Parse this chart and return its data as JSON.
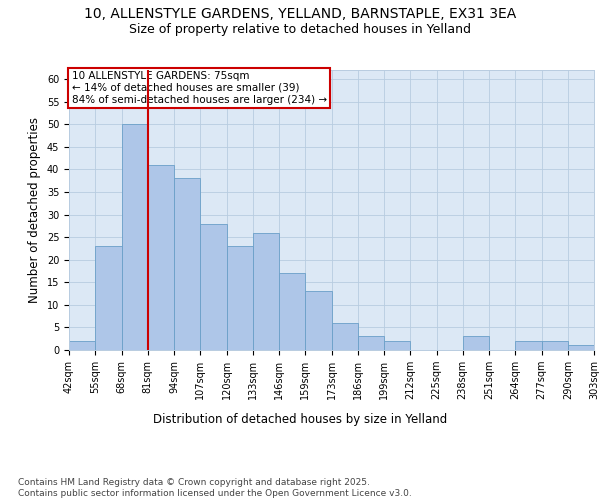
{
  "title_line1": "10, ALLENSTYLE GARDENS, YELLAND, BARNSTAPLE, EX31 3EA",
  "title_line2": "Size of property relative to detached houses in Yelland",
  "xlabel": "Distribution of detached houses by size in Yelland",
  "ylabel": "Number of detached properties",
  "bar_values": [
    2,
    23,
    50,
    41,
    38,
    28,
    23,
    26,
    17,
    13,
    6,
    3,
    2,
    0,
    0,
    3,
    0,
    2,
    2,
    1
  ],
  "categories": [
    "42sqm",
    "55sqm",
    "68sqm",
    "81sqm",
    "94sqm",
    "107sqm",
    "120sqm",
    "133sqm",
    "146sqm",
    "159sqm",
    "173sqm",
    "186sqm",
    "199sqm",
    "212sqm",
    "225sqm",
    "238sqm",
    "251sqm",
    "264sqm",
    "277sqm",
    "290sqm",
    "303sqm"
  ],
  "bar_color": "#aec6e8",
  "bar_edge_color": "#6a9fc8",
  "bg_color": "#dce8f5",
  "grid_color": "#b8cce0",
  "annotation_text": "10 ALLENSTYLE GARDENS: 75sqm\n← 14% of detached houses are smaller (39)\n84% of semi-detached houses are larger (234) →",
  "annotation_box_color": "#ffffff",
  "annotation_box_edge": "#cc0000",
  "vline_x": 2.5,
  "vline_color": "#cc0000",
  "ylim": [
    0,
    62
  ],
  "yticks": [
    0,
    5,
    10,
    15,
    20,
    25,
    30,
    35,
    40,
    45,
    50,
    55,
    60
  ],
  "footer_text": "Contains HM Land Registry data © Crown copyright and database right 2025.\nContains public sector information licensed under the Open Government Licence v3.0.",
  "title_fontsize": 10,
  "subtitle_fontsize": 9,
  "tick_fontsize": 7,
  "ylabel_fontsize": 8.5,
  "xlabel_fontsize": 8.5,
  "footer_fontsize": 6.5,
  "annotation_fontsize": 7.5
}
